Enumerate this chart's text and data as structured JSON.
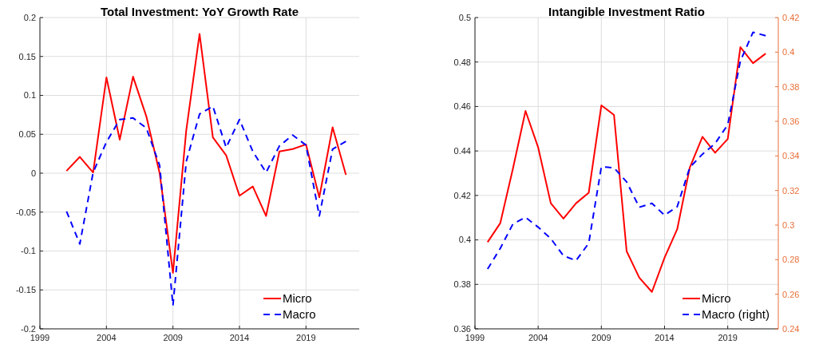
{
  "chart_data": [
    {
      "type": "line",
      "title": "Total Investment: YoY Growth Rate",
      "x": [
        2001,
        2002,
        2003,
        2004,
        2005,
        2006,
        2007,
        2008,
        2009,
        2010,
        2011,
        2012,
        2013,
        2014,
        2015,
        2016,
        2017,
        2018,
        2019,
        2020,
        2021,
        2022
      ],
      "xlim": [
        1999,
        2023
      ],
      "xticks": [
        1999,
        2004,
        2009,
        2014,
        2019
      ],
      "ylim": [
        -0.2,
        0.2
      ],
      "yticks": [
        -0.2,
        -0.15,
        -0.1,
        -0.05,
        0,
        0.05,
        0.1,
        0.15,
        0.2
      ],
      "grid": true,
      "legend": "bottom right",
      "series": [
        {
          "name": "Micro",
          "color": "#ff0000",
          "line_style": "solid",
          "values": [
            0.003,
            0.021,
            0.001,
            0.123,
            0.043,
            0.124,
            0.073,
            0.0,
            -0.128,
            0.055,
            0.179,
            0.046,
            0.023,
            -0.029,
            -0.017,
            -0.055,
            0.028,
            0.031,
            0.037,
            -0.031,
            0.059,
            -0.002
          ]
        },
        {
          "name": "Macro",
          "color": "#0000ff",
          "line_style": "dashed",
          "values": [
            -0.049,
            -0.091,
            0.001,
            0.04,
            0.069,
            0.071,
            0.058,
            0.01,
            -0.17,
            0.015,
            0.076,
            0.086,
            0.033,
            0.069,
            0.028,
            0.001,
            0.035,
            0.049,
            0.036,
            -0.055,
            0.031,
            0.041
          ]
        }
      ]
    },
    {
      "type": "line",
      "title": "Intangible Investment Ratio",
      "x": [
        2000,
        2001,
        2002,
        2003,
        2004,
        2005,
        2006,
        2007,
        2008,
        2009,
        2010,
        2011,
        2012,
        2013,
        2014,
        2015,
        2016,
        2017,
        2018,
        2019,
        2020,
        2021,
        2022
      ],
      "xlim": [
        1999,
        2023
      ],
      "xticks": [
        1999,
        2004,
        2009,
        2014,
        2019
      ],
      "ylim": [
        0.36,
        0.5
      ],
      "yticks": [
        0.36,
        0.38,
        0.4,
        0.42,
        0.44,
        0.46,
        0.48,
        0.5
      ],
      "y2lim": [
        0.24,
        0.42
      ],
      "y2ticks": [
        0.24,
        0.26,
        0.28,
        0.3,
        0.32,
        0.34,
        0.36,
        0.38,
        0.4,
        0.42
      ],
      "grid": true,
      "legend": "bottom right",
      "series": [
        {
          "name": "Micro",
          "color": "#ff0000",
          "line_style": "solid",
          "values": [
            0.399,
            0.4075,
            0.432,
            0.458,
            0.4416,
            0.4165,
            0.4096,
            0.4165,
            0.4212,
            0.4605,
            0.4562,
            0.3949,
            0.383,
            0.3766,
            0.392,
            0.4048,
            0.4326,
            0.4464,
            0.4392,
            0.4454,
            0.4867,
            0.4795,
            0.4838
          ]
        },
        {
          "name": "Macro (right)",
          "color": "#0000ff",
          "line_style": "dashed",
          "axis": "y2",
          "values": [
            0.2746,
            0.2865,
            0.3006,
            0.3045,
            0.2988,
            0.2922,
            0.2823,
            0.2795,
            0.2895,
            0.3337,
            0.3331,
            0.325,
            0.3103,
            0.3126,
            0.3057,
            0.3106,
            0.3334,
            0.341,
            0.3472,
            0.358,
            0.3949,
            0.4115,
            0.4095
          ]
        }
      ]
    }
  ]
}
